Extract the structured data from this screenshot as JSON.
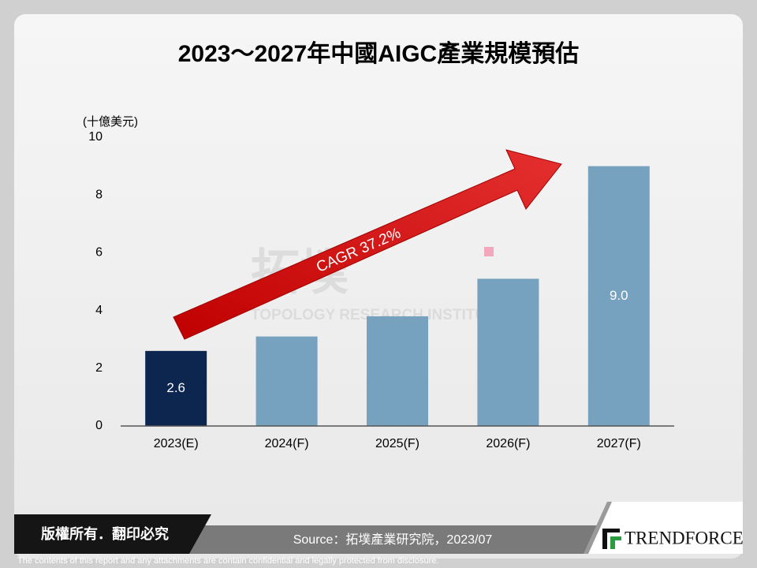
{
  "chart_data": {
    "type": "bar",
    "title": "2023～2027年中國AIGC產業規模預估",
    "y_axis_label": "(十億美元)",
    "categories": [
      "2023(E)",
      "2024(F)",
      "2025(F)",
      "2026(F)",
      "2027(F)"
    ],
    "values": [
      2.6,
      3.1,
      3.8,
      5.1,
      9.0
    ],
    "value_labels": [
      "2.6",
      null,
      null,
      null,
      "9.0"
    ],
    "colors": [
      "#0c2650",
      "#77a2bf",
      "#77a2bf",
      "#77a2bf",
      "#77a2bf"
    ],
    "ylim": [
      0,
      10
    ],
    "yticks": [
      0,
      2,
      4,
      6,
      8,
      10
    ],
    "grid": false,
    "annotation": "CAGR 37.2%",
    "watermark": {
      "logo": "拓墣",
      "text": "TOPOLOGY RESEARCH INSTITUTE"
    }
  },
  "footer": {
    "copyright": "版權所有．翻印必究",
    "source": "Source：拓墣產業研究院，2023/07",
    "logo": "TRENDFORCE",
    "disclaimer": "The contents of this report and any attachments are contain confidential and legally protected from disclosure."
  }
}
